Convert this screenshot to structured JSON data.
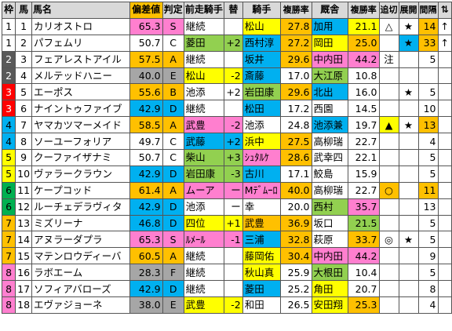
{
  "headers": {
    "waku": "枠",
    "num": "馬",
    "name": "馬名",
    "score": "偏差値",
    "grade": "判定",
    "prev_jockey": "前走騎手",
    "change": "替",
    "jockey": "騎手",
    "jockey_rate": "複勝率",
    "trainer": "厩舎",
    "trainer_rate": "複勝率",
    "oikiri": "追切",
    "tenkai": "展開",
    "kankaku": "間隔",
    "updown": "⇅"
  },
  "colors": {
    "pink": "#ff7fcf",
    "yellow": "#ffff00",
    "orange": "#ffc000",
    "cyan": "#00b0f0",
    "green": "#92d050",
    "gray": "#a6a6a6",
    "white": "#ffffff"
  },
  "rows": [
    {
      "waku": "1",
      "num": "1",
      "name": "カリオストロ",
      "score": "65.3",
      "grade": "S",
      "prev": "継続",
      "chg": "",
      "jockey": "松山",
      "jrate": "27.8",
      "trainer": "加用",
      "trate": "21.1",
      "oikiri": "△",
      "tenkai": "★",
      "kan": "14",
      "ud": "↑",
      "wc": "#ffffff",
      "wtc": "#000000",
      "sc": "#ff7fcf",
      "pc": "",
      "jc": "#ffff00",
      "jrc": "#ffc000",
      "tc": "#00b0f0",
      "trc": "#ffff00",
      "okc": "",
      "tkc": "",
      "kc": "#ffc000"
    },
    {
      "waku": "1",
      "num": "2",
      "name": "パフェムリ",
      "score": "50.7",
      "grade": "C",
      "prev": "菱田",
      "chg": "+2",
      "jockey": "西村淳",
      "jrate": "27.2",
      "trainer": "岡田",
      "trate": "25.0",
      "oikiri": "",
      "tenkai": "★",
      "kan": "33",
      "ud": "↑",
      "wc": "#ffffff",
      "wtc": "#000000",
      "sc": "",
      "pc": "#92d050",
      "jc": "#00b0f0",
      "jrc": "#ffc000",
      "tc": "#ffff00",
      "trc": "#ffc000",
      "okc": "",
      "tkc": "#00b0f0",
      "kc": "#ffc000"
    },
    {
      "waku": "2",
      "num": "3",
      "name": "フェアレストアイル",
      "score": "57.5",
      "grade": "A",
      "prev": "継続",
      "chg": "",
      "jockey": "坂井",
      "jrate": "29.6",
      "trainer": "中内田",
      "trate": "44.2",
      "oikiri": "注",
      "tenkai": "",
      "kan": "5",
      "ud": "",
      "wc": "#595959",
      "wtc": "#ffffff",
      "sc": "#ffc000",
      "pc": "",
      "jc": "#00b0f0",
      "jrc": "#ffc000",
      "tc": "#ff7fcf",
      "trc": "#ff7fcf",
      "okc": "",
      "tkc": "",
      "kc": ""
    },
    {
      "waku": "2",
      "num": "4",
      "name": "メルテッドハニー",
      "score": "40.0",
      "grade": "E",
      "prev": "松山",
      "chg": "-2",
      "jockey": "斎藤",
      "jrate": "17.0",
      "trainer": "大江原",
      "trate": "10.8",
      "oikiri": "",
      "tenkai": "",
      "kan": "",
      "ud": "",
      "wc": "#595959",
      "wtc": "#ffffff",
      "sc": "#a6a6a6",
      "pc": "#ffff00",
      "jc": "#00b0f0",
      "jrc": "",
      "tc": "#92d050",
      "trc": "",
      "okc": "",
      "tkc": "",
      "kc": ""
    },
    {
      "waku": "3",
      "num": "5",
      "name": "エーポス",
      "score": "55.6",
      "grade": "B",
      "prev": "池添",
      "chg": "+2",
      "jockey": "岩田康",
      "jrate": "29.6",
      "trainer": "北出",
      "trate": "16.0",
      "oikiri": "",
      "tenkai": "★",
      "kan": "5",
      "ud": "",
      "wc": "#ff0000",
      "wtc": "#ffffff",
      "sc": "#ffc000",
      "pc": "",
      "jc": "#92d050",
      "jrc": "#ffc000",
      "tc": "#00b0f0",
      "trc": "",
      "okc": "",
      "tkc": "",
      "kc": ""
    },
    {
      "waku": "3",
      "num": "6",
      "name": "ナイントゥファイブ",
      "score": "42.9",
      "grade": "D",
      "prev": "継続",
      "chg": "",
      "jockey": "松田",
      "jrate": "17.2",
      "trainer": "西園",
      "trate": "14.5",
      "oikiri": "",
      "tenkai": "",
      "kan": "10",
      "ud": "",
      "wc": "#ff0000",
      "wtc": "#ffffff",
      "sc": "#00b0f0",
      "pc": "",
      "jc": "#00b0f0",
      "jrc": "",
      "tc": "#ffffff",
      "trc": "",
      "okc": "",
      "tkc": "",
      "kc": ""
    },
    {
      "waku": "4",
      "num": "7",
      "name": "ヤマカツマーメイド",
      "score": "58.5",
      "grade": "A",
      "prev": "武豊",
      "chg": "-2",
      "jockey": "池添",
      "jrate": "24.8",
      "trainer": "池添兼",
      "trate": "19.7",
      "oikiri": "▲",
      "tenkai": "★",
      "kan": "13",
      "ud": "",
      "wc": "#00b0f0",
      "wtc": "#000000",
      "sc": "#ffc000",
      "pc": "#ff7fcf",
      "jc": "#ffffff",
      "jrc": "",
      "tc": "#00b0f0",
      "trc": "",
      "okc": "#ffff00",
      "tkc": "",
      "kc": "#ffc000"
    },
    {
      "waku": "4",
      "num": "8",
      "name": "ソーユーフォリア",
      "score": "49.7",
      "grade": "C",
      "prev": "武藤",
      "chg": "+2",
      "jockey": "浜中",
      "jrate": "27.5",
      "trainer": "高柳瑞",
      "trate": "22.7",
      "oikiri": "",
      "tenkai": "",
      "kan": "4",
      "ud": "",
      "wc": "#00b0f0",
      "wtc": "#000000",
      "sc": "",
      "pc": "#00b0f0",
      "jc": "#ffff00",
      "jrc": "#ffc000",
      "tc": "#ffffff",
      "trc": "",
      "okc": "",
      "tkc": "",
      "kc": ""
    },
    {
      "waku": "5",
      "num": "9",
      "name": "クーファイザナミ",
      "score": "50.7",
      "grade": "C",
      "prev": "柴山",
      "chg": "+3",
      "jockey": "ｼｭﾀﾙｹ",
      "jrate": "28.6",
      "trainer": "武幸四",
      "trate": "22.1",
      "oikiri": "",
      "tenkai": "",
      "kan": "5",
      "ud": "",
      "wc": "#ffff00",
      "wtc": "#000000",
      "sc": "",
      "pc": "#92d050",
      "jc": "#ff7fcf",
      "jrc": "#ffc000",
      "tc": "#ffffff",
      "trc": "",
      "okc": "",
      "tkc": "",
      "kc": ""
    },
    {
      "waku": "5",
      "num": "10",
      "name": "ヴァラークラウン",
      "score": "42.9",
      "grade": "D",
      "prev": "岩田康",
      "chg": "-3",
      "jockey": "古川",
      "jrate": "17.1",
      "trainer": "鮫島",
      "trate": "15.9",
      "oikiri": "",
      "tenkai": "",
      "kan": "5",
      "ud": "",
      "wc": "#ffff00",
      "wtc": "#000000",
      "sc": "#00b0f0",
      "pc": "#92d050",
      "jc": "#00b0f0",
      "jrc": "",
      "tc": "#ffffff",
      "trc": "",
      "okc": "",
      "tkc": "",
      "kc": ""
    },
    {
      "waku": "6",
      "num": "11",
      "name": "ケープコッド",
      "score": "61.4",
      "grade": "A",
      "prev": "ムーア",
      "chg": "ー",
      "jockey": "Mﾃﾞﾑｰﾛ",
      "jrate": "40.0",
      "trainer": "高柳瑞",
      "trate": "22.7",
      "oikiri": "○",
      "tenkai": "",
      "kan": "11",
      "ud": "",
      "wc": "#00b050",
      "wtc": "#000000",
      "sc": "#ffc000",
      "pc": "#ff7fcf",
      "jc": "#ff7fcf",
      "jrc": "#ffc000",
      "tc": "#ffffff",
      "trc": "",
      "okc": "#ffc000",
      "tkc": "",
      "kc": "#ffc000"
    },
    {
      "waku": "6",
      "num": "12",
      "name": "ルーチェデラヴィタ",
      "score": "42.9",
      "grade": "D",
      "prev": "池添",
      "chg": "ー",
      "jockey": "幸",
      "jrate": "20.0",
      "trainer": "西村",
      "trate": "35.7",
      "oikiri": "",
      "tenkai": "",
      "kan": "13",
      "ud": "",
      "wc": "#00b050",
      "wtc": "#000000",
      "sc": "#00b0f0",
      "pc": "",
      "jc": "#ffffff",
      "jrc": "",
      "tc": "#92d050",
      "trc": "#ff7fcf",
      "okc": "",
      "tkc": "",
      "kc": ""
    },
    {
      "waku": "7",
      "num": "13",
      "name": "ミズリーナ",
      "score": "46.8",
      "grade": "D",
      "prev": "四位",
      "chg": "+1",
      "jockey": "武豊",
      "jrate": "36.9",
      "trainer": "坂口",
      "trate": "21.5",
      "oikiri": "",
      "tenkai": "",
      "kan": "5",
      "ud": "",
      "wc": "#ffc000",
      "wtc": "#000000",
      "sc": "#00b0f0",
      "pc": "#ffff00",
      "jc": "#ffc000",
      "jrc": "#ffc000",
      "tc": "#ffffff",
      "trc": "#92d050",
      "okc": "",
      "tkc": "",
      "kc": ""
    },
    {
      "waku": "7",
      "num": "14",
      "name": "アヌラーダプラ",
      "score": "65.3",
      "grade": "S",
      "prev": "ﾙﾒｰﾙ",
      "chg": "-1",
      "jockey": "三浦",
      "jrate": "32.8",
      "trainer": "萩原",
      "trate": "33.7",
      "oikiri": "◎",
      "tenkai": "★",
      "kan": "5",
      "ud": "",
      "wc": "#ffc000",
      "wtc": "#000000",
      "sc": "#ff7fcf",
      "pc": "#ff7fcf",
      "jc": "#00b0f0",
      "jrc": "#ffc000",
      "tc": "#ffffff",
      "trc": "#ffc000",
      "okc": "",
      "tkc": "",
      "kc": ""
    },
    {
      "waku": "7",
      "num": "15",
      "name": "マテンロウディーバ",
      "score": "60.5",
      "grade": "A",
      "prev": "継続",
      "chg": "",
      "jockey": "藤岡佑",
      "jrate": "30.4",
      "trainer": "中内田",
      "trate": "44.2",
      "oikiri": "",
      "tenkai": "",
      "kan": "9",
      "ud": "",
      "wc": "#ffc000",
      "wtc": "#000000",
      "sc": "#ffc000",
      "pc": "",
      "jc": "#ffff00",
      "jrc": "#ffc000",
      "tc": "#ff7fcf",
      "trc": "#ff7fcf",
      "okc": "",
      "tkc": "",
      "kc": ""
    },
    {
      "waku": "8",
      "num": "16",
      "name": "ラボエーム",
      "score": "28.3",
      "grade": "F",
      "prev": "継続",
      "chg": "",
      "jockey": "秋山真",
      "jrate": "25.9",
      "trainer": "大根田",
      "trate": "10.4",
      "oikiri": "",
      "tenkai": "",
      "kan": "5",
      "ud": "",
      "wc": "#ff7fcf",
      "wtc": "#000000",
      "sc": "#a6a6a6",
      "pc": "",
      "jc": "#ffff00",
      "jrc": "",
      "tc": "#92d050",
      "trc": "",
      "okc": "",
      "tkc": "",
      "kc": ""
    },
    {
      "waku": "8",
      "num": "17",
      "name": "ソフィアバローズ",
      "score": "42.9",
      "grade": "D",
      "prev": "継続",
      "chg": "",
      "jockey": "菱田",
      "jrate": "25.2",
      "trainer": "角田",
      "trate": "20.7",
      "oikiri": "",
      "tenkai": "",
      "kan": "8",
      "ud": "",
      "wc": "#ff7fcf",
      "wtc": "#000000",
      "sc": "#00b0f0",
      "pc": "",
      "jc": "#00b0f0",
      "jrc": "",
      "tc": "#ffff00",
      "trc": "",
      "okc": "",
      "tkc": "",
      "kc": ""
    },
    {
      "waku": "8",
      "num": "18",
      "name": "エヴァジョーネ",
      "score": "38.0",
      "grade": "E",
      "prev": "武豊",
      "chg": "-2",
      "jockey": "和田",
      "jrate": "26.5",
      "trainer": "安田翔",
      "trate": "25.3",
      "oikiri": "",
      "tenkai": "",
      "kan": "4",
      "ud": "",
      "wc": "#ff7fcf",
      "wtc": "#000000",
      "sc": "#a6a6a6",
      "pc": "#ffff00",
      "jc": "#ffffff",
      "jrc": "",
      "tc": "#ffff00",
      "trc": "#ffc000",
      "okc": "",
      "tkc": "",
      "kc": ""
    }
  ]
}
